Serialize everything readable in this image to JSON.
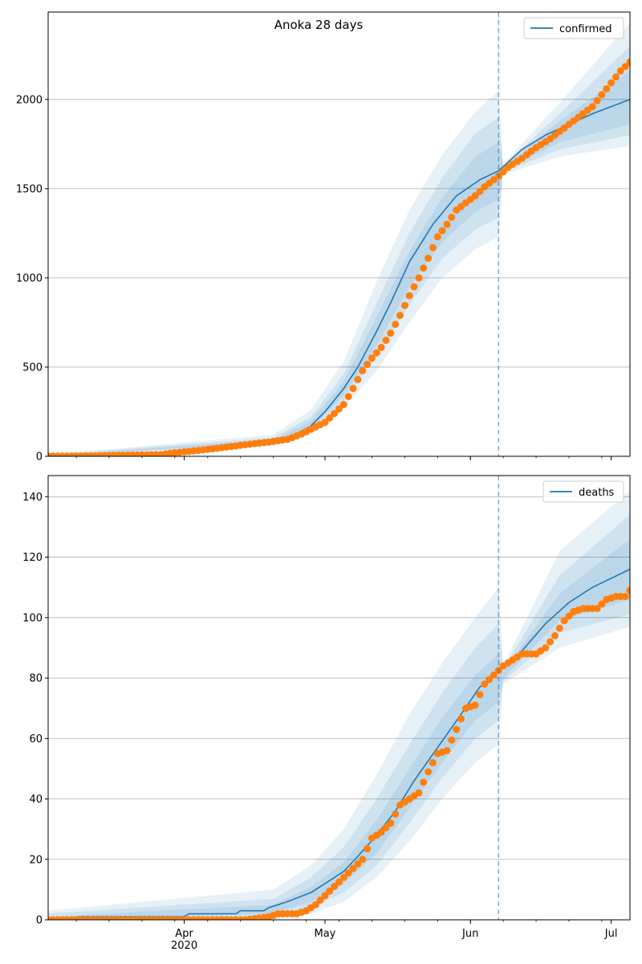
{
  "figure": {
    "title": "Anoka 28 days"
  },
  "chart_data": [
    {
      "type": "line",
      "title": "Anoka 28 days",
      "xlabel": "",
      "ylabel": "",
      "x_axis": {
        "type": "date",
        "range": [
          "2020-03-03",
          "2020-07-05"
        ],
        "tick_labels": [
          "Apr\n2020",
          "May",
          "Jun",
          "Jul"
        ],
        "tick_dates": [
          "2020-04-01",
          "2020-05-01",
          "2020-06-01",
          "2020-07-01"
        ]
      },
      "ylim": [
        0,
        2490
      ],
      "yticks": [
        0,
        500,
        1000,
        1500,
        2000
      ],
      "grid": "horizontal",
      "legend": {
        "position": "top-right",
        "entries": [
          "confirmed"
        ]
      },
      "forecast_start": "2020-06-07",
      "colors": {
        "model": "#1f77b4",
        "observed": "#ff7f0e",
        "band": "#1f77b4",
        "vline": "#1f77b4"
      },
      "series": [
        {
          "name": "confirmed",
          "kind": "model-line",
          "points": [
            [
              "2020-03-03",
              1
            ],
            [
              "2020-03-20",
              5
            ],
            [
              "2020-04-01",
              22
            ],
            [
              "2020-04-10",
              50
            ],
            [
              "2020-04-18",
              80
            ],
            [
              "2020-04-24",
              110
            ],
            [
              "2020-04-28",
              170
            ],
            [
              "2020-05-01",
              250
            ],
            [
              "2020-05-05",
              380
            ],
            [
              "2020-05-08",
              500
            ],
            [
              "2020-05-12",
              700
            ],
            [
              "2020-05-15",
              860
            ],
            [
              "2020-05-19",
              1090
            ],
            [
              "2020-05-24",
              1300
            ],
            [
              "2020-05-29",
              1460
            ],
            [
              "2020-06-03",
              1550
            ],
            [
              "2020-06-07",
              1600
            ],
            [
              "2020-06-12",
              1720
            ],
            [
              "2020-06-17",
              1800
            ],
            [
              "2020-06-22",
              1860
            ],
            [
              "2020-06-27",
              1920
            ],
            [
              "2020-07-05",
              2000
            ]
          ]
        },
        {
          "name": "",
          "kind": "observed-points",
          "points": [
            [
              "2020-03-03",
              1
            ],
            [
              "2020-03-08",
              1
            ],
            [
              "2020-03-13",
              2
            ],
            [
              "2020-03-17",
              5
            ],
            [
              "2020-03-22",
              7
            ],
            [
              "2020-03-27",
              10
            ],
            [
              "2020-03-30",
              20
            ],
            [
              "2020-04-03",
              30
            ],
            [
              "2020-04-07",
              42
            ],
            [
              "2020-04-11",
              55
            ],
            [
              "2020-04-15",
              68
            ],
            [
              "2020-04-19",
              80
            ],
            [
              "2020-04-23",
              95
            ],
            [
              "2020-04-26",
              125
            ],
            [
              "2020-04-29",
              165
            ],
            [
              "2020-05-01",
              190
            ],
            [
              "2020-05-03",
              240
            ],
            [
              "2020-05-05",
              290
            ],
            [
              "2020-05-07",
              380
            ],
            [
              "2020-05-09",
              480
            ],
            [
              "2020-05-11",
              550
            ],
            [
              "2020-05-13",
              610
            ],
            [
              "2020-05-15",
              690
            ],
            [
              "2020-05-17",
              790
            ],
            [
              "2020-05-19",
              900
            ],
            [
              "2020-05-21",
              1000
            ],
            [
              "2020-05-23",
              1110
            ],
            [
              "2020-05-25",
              1230
            ],
            [
              "2020-05-27",
              1300
            ],
            [
              "2020-05-29",
              1380
            ],
            [
              "2020-05-31",
              1420
            ],
            [
              "2020-06-02",
              1460
            ],
            [
              "2020-06-04",
              1510
            ],
            [
              "2020-06-07",
              1570
            ],
            [
              "2020-06-09",
              1620
            ],
            [
              "2020-06-12",
              1670
            ],
            [
              "2020-06-15",
              1730
            ],
            [
              "2020-06-18",
              1780
            ],
            [
              "2020-06-21",
              1840
            ],
            [
              "2020-06-24",
              1900
            ],
            [
              "2020-06-27",
              1960
            ],
            [
              "2020-06-30",
              2060
            ],
            [
              "2020-07-03",
              2160
            ],
            [
              "2020-07-05",
              2210
            ]
          ]
        }
      ],
      "bands": [
        {
          "x": [
            "2020-03-03",
            "2020-04-20",
            "2020-04-28",
            "2020-05-05",
            "2020-05-12",
            "2020-05-19",
            "2020-05-26",
            "2020-06-02",
            "2020-06-07",
            "2020-06-08",
            "2020-06-20",
            "2020-07-05"
          ],
          "lower": [
            0,
            60,
            120,
            270,
            480,
            750,
            1000,
            1160,
            1230,
            1580,
            1680,
            1740
          ],
          "upper": [
            10,
            120,
            260,
            530,
            980,
            1380,
            1690,
            1930,
            2050,
            1640,
            1980,
            2430
          ]
        },
        {
          "x": [
            "2020-03-03",
            "2020-04-20",
            "2020-04-28",
            "2020-05-05",
            "2020-05-12",
            "2020-05-19",
            "2020-05-26",
            "2020-06-02",
            "2020-06-07",
            "2020-06-08",
            "2020-06-20",
            "2020-07-05"
          ],
          "lower": [
            0,
            70,
            140,
            310,
            560,
            850,
            1110,
            1270,
            1340,
            1590,
            1720,
            1800
          ],
          "upper": [
            8,
            105,
            220,
            460,
            860,
            1250,
            1560,
            1810,
            1900,
            1630,
            1920,
            2300
          ]
        },
        {
          "x": [
            "2020-03-03",
            "2020-04-20",
            "2020-04-28",
            "2020-05-05",
            "2020-05-12",
            "2020-05-19",
            "2020-05-26",
            "2020-06-02",
            "2020-06-07",
            "2020-06-08",
            "2020-06-20",
            "2020-07-05"
          ],
          "lower": [
            0,
            78,
            155,
            340,
            620,
            950,
            1200,
            1370,
            1440,
            1600,
            1760,
            1860
          ],
          "upper": [
            5,
            92,
            195,
            420,
            780,
            1150,
            1450,
            1680,
            1760,
            1620,
            1880,
            2160
          ]
        }
      ]
    },
    {
      "type": "line",
      "title": "",
      "xlabel": "",
      "ylabel": "",
      "x_axis": {
        "type": "date",
        "range": [
          "2020-03-03",
          "2020-07-05"
        ],
        "tick_labels": [
          "Apr\n2020",
          "May",
          "Jun",
          "Jul"
        ],
        "tick_dates": [
          "2020-04-01",
          "2020-05-01",
          "2020-06-01",
          "2020-07-01"
        ]
      },
      "ylim": [
        0,
        147
      ],
      "yticks": [
        0,
        20,
        40,
        60,
        80,
        100,
        120,
        140
      ],
      "grid": "horizontal",
      "legend": {
        "position": "top-right",
        "entries": [
          "deaths"
        ]
      },
      "forecast_start": "2020-06-07",
      "colors": {
        "model": "#1f77b4",
        "observed": "#ff7f0e",
        "band": "#1f77b4",
        "vline": "#1f77b4"
      },
      "series": [
        {
          "name": "deaths",
          "kind": "model-line",
          "points": [
            [
              "2020-03-03",
              0
            ],
            [
              "2020-03-10",
              1
            ],
            [
              "2020-04-01",
              1
            ],
            [
              "2020-04-02",
              2
            ],
            [
              "2020-04-12",
              2
            ],
            [
              "2020-04-13",
              3
            ],
            [
              "2020-04-18",
              3
            ],
            [
              "2020-04-19",
              4
            ],
            [
              "2020-04-23",
              6
            ],
            [
              "2020-04-28",
              9
            ],
            [
              "2020-05-01",
              12
            ],
            [
              "2020-05-05",
              16
            ],
            [
              "2020-05-08",
              21
            ],
            [
              "2020-05-12",
              28
            ],
            [
              "2020-05-16",
              36
            ],
            [
              "2020-05-20",
              46
            ],
            [
              "2020-05-25",
              57
            ],
            [
              "2020-05-30",
              68
            ],
            [
              "2020-06-03",
              77
            ],
            [
              "2020-06-07",
              82
            ],
            [
              "2020-06-12",
              89
            ],
            [
              "2020-06-17",
              98
            ],
            [
              "2020-06-22",
              105
            ],
            [
              "2020-06-27",
              110
            ],
            [
              "2020-07-01",
              113
            ],
            [
              "2020-07-05",
              116
            ]
          ]
        },
        {
          "name": "",
          "kind": "observed-points",
          "points": [
            [
              "2020-03-03",
              0
            ],
            [
              "2020-03-15",
              0
            ],
            [
              "2020-03-30",
              0
            ],
            [
              "2020-04-14",
              0
            ],
            [
              "2020-04-19",
              1
            ],
            [
              "2020-04-21",
              2
            ],
            [
              "2020-04-25",
              2
            ],
            [
              "2020-04-27",
              3
            ],
            [
              "2020-04-29",
              5
            ],
            [
              "2020-05-01",
              8
            ],
            [
              "2020-05-03",
              11
            ],
            [
              "2020-05-05",
              14
            ],
            [
              "2020-05-07",
              17
            ],
            [
              "2020-05-09",
              20
            ],
            [
              "2020-05-11",
              27
            ],
            [
              "2020-05-13",
              29
            ],
            [
              "2020-05-15",
              32
            ],
            [
              "2020-05-17",
              38
            ],
            [
              "2020-05-19",
              40
            ],
            [
              "2020-05-21",
              42
            ],
            [
              "2020-05-23",
              49
            ],
            [
              "2020-05-25",
              55
            ],
            [
              "2020-05-27",
              56
            ],
            [
              "2020-05-29",
              63
            ],
            [
              "2020-05-31",
              70
            ],
            [
              "2020-06-02",
              71
            ],
            [
              "2020-06-04",
              78
            ],
            [
              "2020-06-06",
              81
            ],
            [
              "2020-06-08",
              84
            ],
            [
              "2020-06-10",
              86
            ],
            [
              "2020-06-12",
              88
            ],
            [
              "2020-06-15",
              88
            ],
            [
              "2020-06-17",
              90
            ],
            [
              "2020-06-19",
              94
            ],
            [
              "2020-06-21",
              99
            ],
            [
              "2020-06-23",
              102
            ],
            [
              "2020-06-25",
              103
            ],
            [
              "2020-06-28",
              103
            ],
            [
              "2020-06-30",
              106
            ],
            [
              "2020-07-02",
              107
            ],
            [
              "2020-07-04",
              107
            ],
            [
              "2020-07-05",
              109
            ]
          ]
        }
      ],
      "bands": [
        {
          "x": [
            "2020-03-03",
            "2020-04-20",
            "2020-04-28",
            "2020-05-05",
            "2020-05-12",
            "2020-05-19",
            "2020-05-26",
            "2020-06-02",
            "2020-06-07",
            "2020-06-08",
            "2020-06-20",
            "2020-07-05"
          ],
          "lower": [
            0,
            0,
            2,
            6,
            14,
            26,
            40,
            52,
            58,
            78,
            90,
            97
          ],
          "upper": [
            3,
            10,
            18,
            30,
            48,
            68,
            85,
            100,
            110,
            84,
            122,
            142
          ]
        },
        {
          "x": [
            "2020-03-03",
            "2020-04-20",
            "2020-04-28",
            "2020-05-05",
            "2020-05-12",
            "2020-05-19",
            "2020-05-26",
            "2020-06-02",
            "2020-06-07",
            "2020-06-08",
            "2020-06-20",
            "2020-07-05"
          ],
          "lower": [
            0,
            1,
            4,
            9,
            18,
            32,
            47,
            60,
            66,
            79,
            95,
            101
          ],
          "upper": [
            2,
            7,
            14,
            24,
            40,
            58,
            75,
            90,
            98,
            83,
            114,
            134
          ]
        },
        {
          "x": [
            "2020-03-03",
            "2020-04-20",
            "2020-04-28",
            "2020-05-05",
            "2020-05-12",
            "2020-05-19",
            "2020-05-26",
            "2020-06-02",
            "2020-06-07",
            "2020-06-08",
            "2020-06-20",
            "2020-07-05"
          ],
          "lower": [
            0,
            2,
            6,
            12,
            22,
            37,
            52,
            66,
            72,
            80,
            99,
            106
          ],
          "upper": [
            1,
            5,
            11,
            19,
            33,
            50,
            67,
            81,
            88,
            82,
            108,
            126
          ]
        }
      ]
    }
  ]
}
